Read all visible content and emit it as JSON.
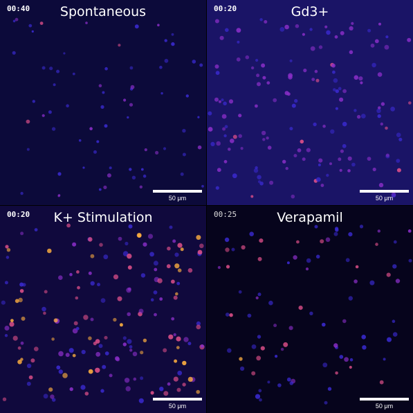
{
  "panels": [
    {
      "id": "spontaneous",
      "timestamp": "00:40",
      "title": "Spontaneous",
      "scale": "50 μm"
    },
    {
      "id": "gd3",
      "timestamp": "00:20",
      "title": "Gd3+",
      "scale": "50 μm"
    },
    {
      "id": "k-stim",
      "timestamp": "00:20",
      "title": "K+ Stimulation",
      "scale": "50 μm"
    },
    {
      "id": "verapamil",
      "timestamp": "00:25",
      "title": "Verapamil",
      "scale": "50 μm"
    }
  ],
  "colors": {
    "bg_spontaneous": "#0c0a3a",
    "bg_gd3": "#1a1466",
    "bg_k": "#10093d",
    "bg_verapamil": "#06041c",
    "cell_dim": "#3a2ad0",
    "cell_mid": "#8a2ec8",
    "cell_hot": "#e0508a",
    "cell_very_hot": "#ffb040"
  }
}
